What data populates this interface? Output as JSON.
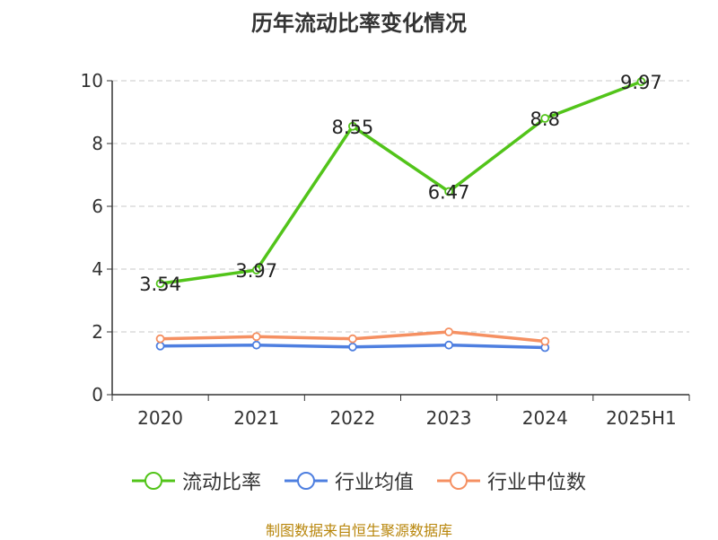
{
  "chart_data": {
    "type": "line",
    "title": "历年流动比率变化情况",
    "categories": [
      "2020",
      "2021",
      "2022",
      "2023",
      "2024",
      "2025H1"
    ],
    "ylim": [
      0,
      10
    ],
    "yticks": [
      0,
      2,
      4,
      6,
      8,
      10
    ],
    "grid": true,
    "legend_position": "bottom",
    "series": [
      {
        "name": "流动比率",
        "color": "#52c41a",
        "values": [
          3.54,
          3.97,
          8.55,
          6.47,
          8.8,
          9.97
        ],
        "labels": [
          "3.54",
          "3.97",
          "8.55",
          "6.47",
          "8.8",
          "9.97"
        ]
      },
      {
        "name": "行业均值",
        "color": "#4e7fe0",
        "values": [
          1.55,
          1.58,
          1.52,
          1.58,
          1.5,
          null
        ]
      },
      {
        "name": "行业中位数",
        "color": "#f59062",
        "values": [
          1.78,
          1.85,
          1.78,
          2.0,
          1.7,
          null
        ]
      }
    ]
  },
  "source": "制图数据来自恒生聚源数据库"
}
